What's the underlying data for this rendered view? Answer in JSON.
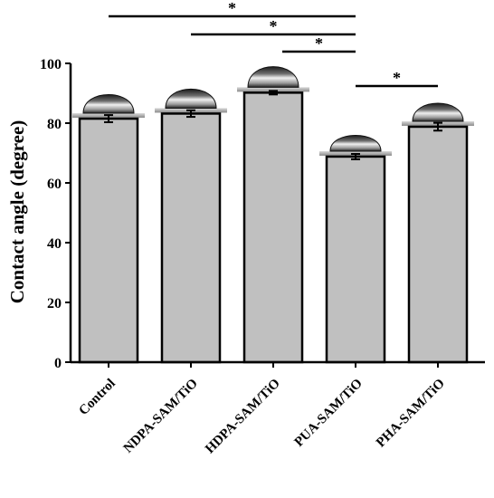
{
  "chart_data": {
    "type": "bar",
    "ylabel": "Contact angle (degree)",
    "xlabel": "",
    "ylim": [
      0,
      100
    ],
    "yticks": [
      0,
      20,
      40,
      60,
      80,
      100
    ],
    "categories": [
      "Control",
      "NDPA-SAM/TiO",
      "HDPA-SAM/TiO",
      "PUA-SAM/TiO",
      "PHA-SAM/TiO"
    ],
    "values": [
      81.5,
      83.2,
      90.2,
      68.8,
      78.8
    ],
    "errors": [
      1.2,
      1.1,
      0.6,
      0.9,
      1.3
    ],
    "bar_color": "#c0c0c0",
    "significance": [
      {
        "from": "Control",
        "to": "PUA-SAM/TiO",
        "label": "*"
      },
      {
        "from": "NDPA-SAM/TiO",
        "to": "PUA-SAM/TiO",
        "label": "*"
      },
      {
        "from": "HDPA-SAM/TiO",
        "to": "PUA-SAM/TiO",
        "label": "*"
      },
      {
        "from": "PUA-SAM/TiO",
        "to": "PHA-SAM/TiO",
        "label": "*"
      }
    ],
    "grid": false,
    "legend": "none",
    "inset_images": "water droplet photo above each bar"
  }
}
